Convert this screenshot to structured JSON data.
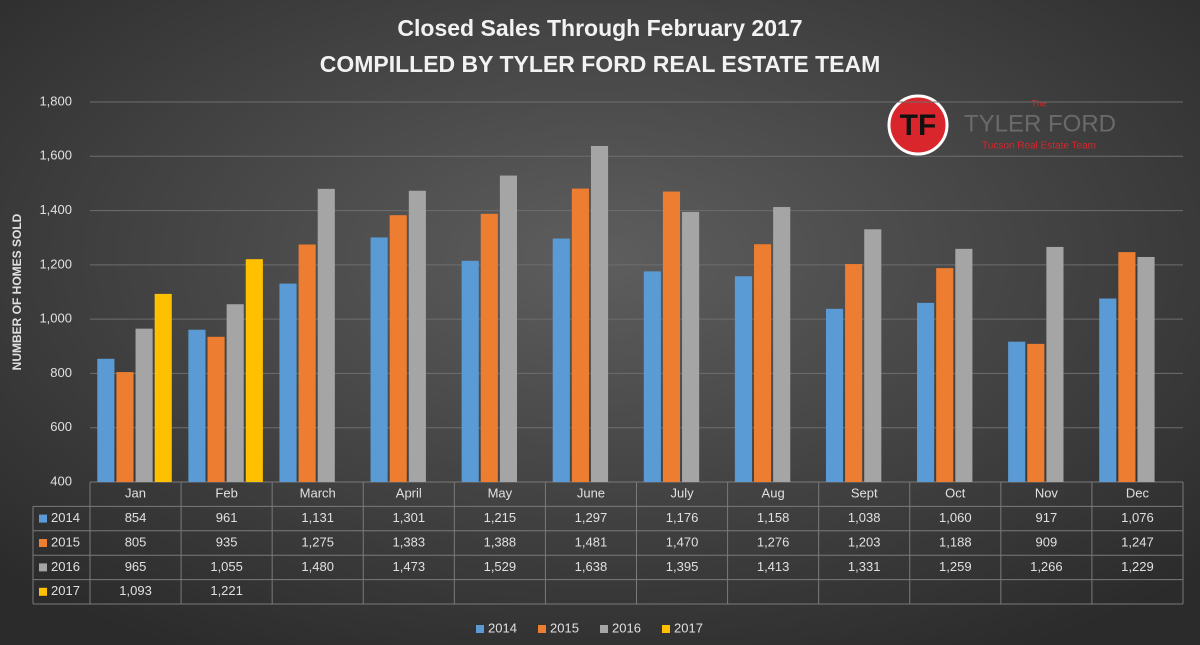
{
  "chart_data": {
    "type": "bar",
    "title": "Closed Sales Through February 2017",
    "subtitle": "COMPILLED BY TYLER FORD REAL ESTATE TEAM",
    "ylabel": "NUMBER OF HOMES SOLD",
    "logo": {
      "mark": "TF",
      "top": "The",
      "name": "TYLER FORD",
      "tagline": "Tucson Real Estate Team"
    },
    "categories": [
      "Jan",
      "Feb",
      "March",
      "April",
      "May",
      "June",
      "July",
      "Aug",
      "Sept",
      "Oct",
      "Nov",
      "Dec"
    ],
    "series": [
      {
        "name": "2014",
        "color": "#5b9bd5",
        "values": [
          854,
          961,
          1131,
          1301,
          1215,
          1297,
          1176,
          1158,
          1038,
          1060,
          917,
          1076
        ],
        "value_labels": [
          "854",
          "961",
          "1,131",
          "1,301",
          "1,215",
          "1,297",
          "1,176",
          "1,158",
          "1,038",
          "1,060",
          "917",
          "1,076"
        ]
      },
      {
        "name": "2015",
        "color": "#ed7d31",
        "values": [
          805,
          935,
          1275,
          1383,
          1388,
          1481,
          1470,
          1276,
          1203,
          1188,
          909,
          1247
        ],
        "value_labels": [
          "805",
          "935",
          "1,275",
          "1,383",
          "1,388",
          "1,481",
          "1,470",
          "1,276",
          "1,203",
          "1,188",
          "909",
          "1,247"
        ]
      },
      {
        "name": "2016",
        "color": "#a5a5a5",
        "values": [
          965,
          1055,
          1480,
          1473,
          1529,
          1638,
          1395,
          1413,
          1331,
          1259,
          1266,
          1229
        ],
        "value_labels": [
          "965",
          "1,055",
          "1,480",
          "1,473",
          "1,529",
          "1,638",
          "1,395",
          "1,413",
          "1,331",
          "1,259",
          "1,266",
          "1,229"
        ]
      },
      {
        "name": "2017",
        "color": "#ffc000",
        "values": [
          1093,
          1221,
          null,
          null,
          null,
          null,
          null,
          null,
          null,
          null,
          null,
          null
        ],
        "value_labels": [
          "1,093",
          "1,221",
          null,
          null,
          null,
          null,
          null,
          null,
          null,
          null,
          null,
          null
        ]
      }
    ],
    "ylim": [
      400,
      1800
    ],
    "yticks": [
      400,
      600,
      800,
      {
        "value": 1000,
        "label": "1,000"
      },
      {
        "value": 1200,
        "label": "1,200"
      },
      {
        "value": 1400,
        "label": "1,400"
      },
      {
        "value": 1600,
        "label": "1,600"
      },
      {
        "value": 1800,
        "label": "1,800"
      }
    ],
    "grid": true,
    "legend": "bottom"
  }
}
